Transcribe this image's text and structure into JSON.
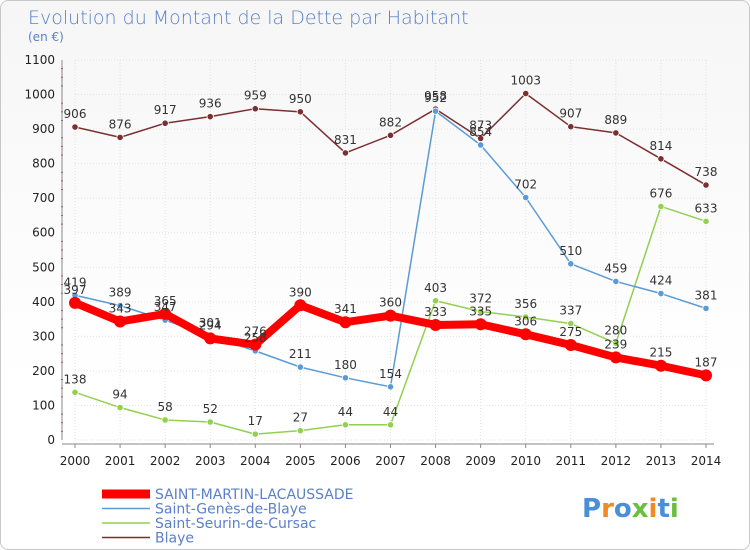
{
  "chart_data": {
    "type": "line",
    "title": "Evolution du Montant de la Dette par Habitant",
    "subtitle": "(en €)",
    "xlabel": "",
    "ylabel": "",
    "x": [
      "2000",
      "2001",
      "2002",
      "2003",
      "2004",
      "2005",
      "2006",
      "2007",
      "2008",
      "2009",
      "2010",
      "2011",
      "2012",
      "2013",
      "2014"
    ],
    "ylim": [
      0,
      1100
    ],
    "yticks": [
      "0",
      "100",
      "200",
      "300",
      "400",
      "500",
      "600",
      "700",
      "800",
      "900",
      "1000",
      "1100"
    ],
    "grid": true,
    "legend_position": "bottom-left",
    "series": [
      {
        "name": "SAINT-MARTIN-LACAUSSADE",
        "color": "#ff0000",
        "values": [
          397,
          343,
          365,
          294,
          276,
          390,
          341,
          360,
          333,
          335,
          306,
          275,
          239,
          215,
          187
        ]
      },
      {
        "name": "Saint-Genès-de-Blaye",
        "color": "#5b9bd5",
        "values": [
          419,
          389,
          347,
          301,
          258,
          211,
          180,
          154,
          952,
          854,
          702,
          510,
          459,
          424,
          381
        ]
      },
      {
        "name": "Saint-Seurin-de-Cursac",
        "color": "#92d050",
        "values": [
          138,
          94,
          58,
          52,
          17,
          27,
          44,
          44,
          403,
          372,
          356,
          337,
          280,
          676,
          633
        ]
      },
      {
        "name": "Blaye",
        "color": "#7b2f2f",
        "values": [
          906,
          876,
          917,
          936,
          959,
          950,
          831,
          882,
          958,
          873,
          1003,
          907,
          889,
          814,
          738
        ]
      }
    ]
  },
  "watermark": {
    "letters": [
      "P",
      "r",
      "o",
      "x",
      "i",
      "t",
      "i"
    ],
    "colors": [
      "#4a90d9",
      "#f08a24",
      "#4a90d9",
      "#6abf40",
      "#f08a24",
      "#4a90d9",
      "#6abf40"
    ]
  }
}
